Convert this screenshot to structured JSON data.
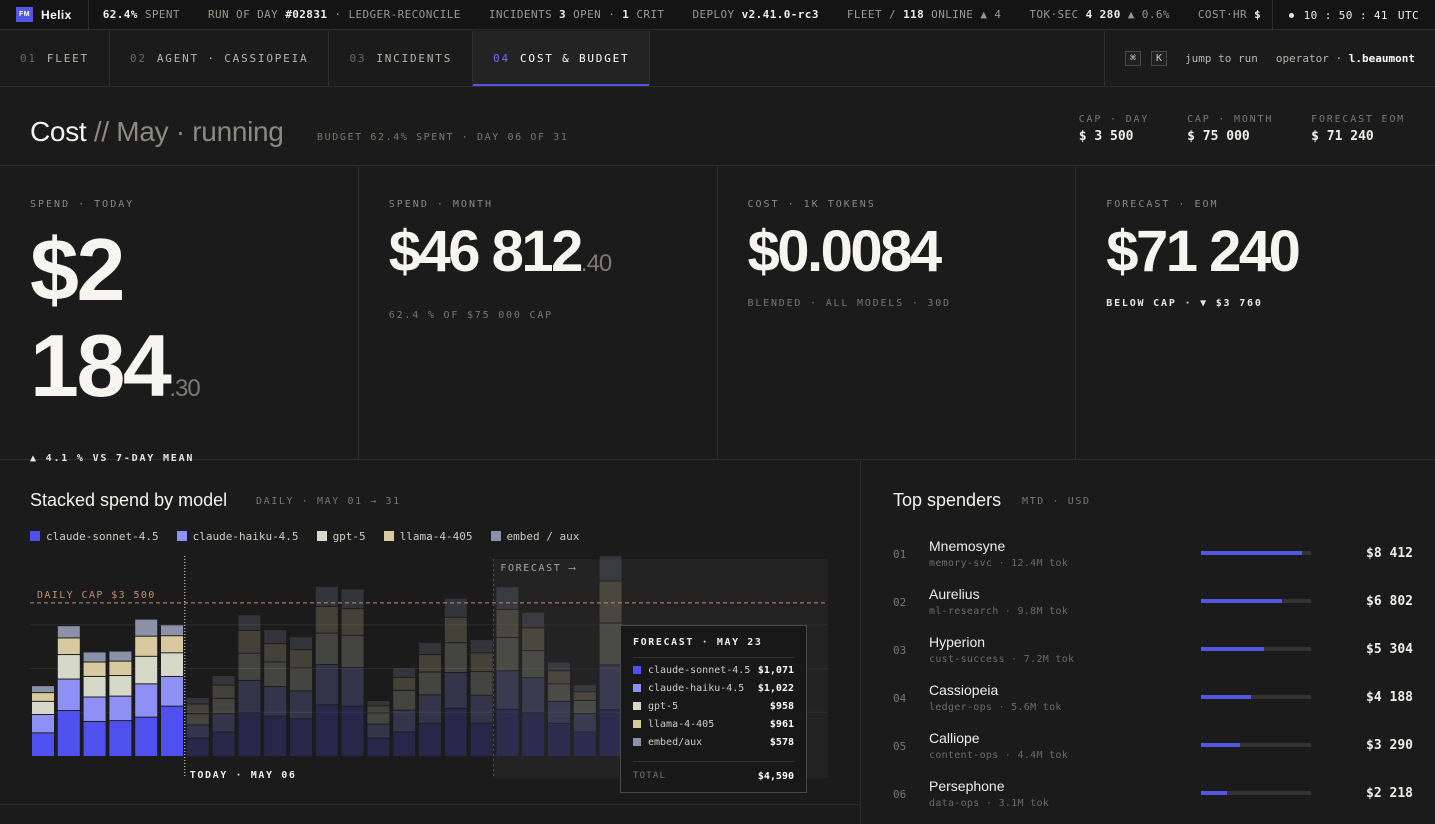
{
  "ticker": {
    "brand_logo": "FM",
    "brand": "Helix",
    "spent_value": "62.4%",
    "spent_label": "SPENT",
    "run_label": "RUN OF DAY",
    "run_id": "#02831",
    "run_name": "· LEDGER-RECONCILE",
    "incidents_label": "INCIDENTS",
    "incidents_open": "3",
    "incidents_open_label": "OPEN ·",
    "incidents_crit": "1",
    "incidents_crit_label": "CRIT",
    "deploy_label": "DEPLOY",
    "deploy_version": "v2.41.0-rc3",
    "fleet_label": "FLEET /",
    "fleet_online": "118",
    "fleet_online_label": "ONLINE ▲ 4",
    "toksec_label": "TOK·SEC",
    "toksec_value": "4 280",
    "toksec_delta": "▲ 0.6%",
    "costhr_label": "COST·HR",
    "costhr_value": "$",
    "clock": "10 : 50 : 41",
    "tz": "UTC"
  },
  "tabs": [
    {
      "num": "01",
      "label": "FLEET"
    },
    {
      "num": "02",
      "label": "AGENT · CASSIOPEIA"
    },
    {
      "num": "03",
      "label": "INCIDENTS"
    },
    {
      "num": "04",
      "label": "COST & BUDGET"
    }
  ],
  "nav": {
    "kbd1": "⌘",
    "kbd2": "K",
    "jump": "jump to run",
    "operator_label": "operator ·",
    "operator": "l.beaumont"
  },
  "header": {
    "title": "Cost",
    "title_sep": " // ",
    "title_period": "May · running",
    "sub": "BUDGET 62.4% SPENT · DAY 06 OF 31",
    "caps": [
      {
        "label": "CAP · DAY",
        "value": "$ 3 500"
      },
      {
        "label": "CAP · MONTH",
        "value": "$ 75 000"
      },
      {
        "label": "FORECAST EOM",
        "value": "$ 71 240"
      }
    ]
  },
  "kpis": [
    {
      "label": "SPEND · TODAY",
      "value": "$2 184",
      "cents": ".30",
      "note": "▲ 4.1 % VS 7-DAY MEAN"
    },
    {
      "label": "SPEND · MONTH",
      "value": "$46 812",
      "cents": ".40",
      "note": "62.4 % OF $75 000 CAP"
    },
    {
      "label": "COST · 1K TOKENS",
      "value": "$0.0084",
      "cents": "",
      "note": "BLENDED · ALL MODELS · 30D"
    },
    {
      "label": "FORECAST · EOM",
      "value": "$71 240",
      "cents": "",
      "note": "BELOW CAP · ▼ $3 760"
    }
  ],
  "chart": {
    "title": "Stacked spend by model",
    "sub": "DAILY · MAY 01 → 31",
    "cap_label": "DAILY CAP $3 500",
    "forecast_label": "FORECAST ⟶",
    "today_label": "TODAY · MAY 06",
    "colors": [
      "#4f51ef",
      "#8e90f5",
      "#d6d9c8",
      "#d8c99e",
      "#8b91a8"
    ]
  },
  "chart_data": {
    "type": "bar",
    "stacked": true,
    "series_names": [
      "claude-sonnet-4.5",
      "claude-haiku-4.5",
      "gpt-5",
      "llama-4-405",
      "embed / aux"
    ],
    "cap": 3500,
    "ylim": [
      0,
      4000
    ],
    "today_index": 6,
    "forecast_from_index": 18,
    "days": [
      [
        540,
        420,
        300,
        200,
        160
      ],
      [
        1050,
        720,
        560,
        380,
        280
      ],
      [
        800,
        560,
        470,
        330,
        230
      ],
      [
        820,
        560,
        470,
        330,
        230
      ],
      [
        900,
        760,
        630,
        460,
        390
      ],
      [
        1150,
        680,
        540,
        390,
        250
      ],
      [
        420,
        300,
        260,
        220,
        150
      ],
      [
        560,
        420,
        350,
        300,
        220
      ],
      [
        1000,
        740,
        620,
        520,
        360
      ],
      [
        920,
        680,
        560,
        420,
        320
      ],
      [
        860,
        640,
        520,
        420,
        300
      ],
      [
        1180,
        920,
        720,
        610,
        460
      ],
      [
        1150,
        880,
        740,
        610,
        450
      ],
      [
        420,
        320,
        260,
        160,
        120
      ],
      [
        560,
        500,
        450,
        300,
        220
      ],
      [
        760,
        650,
        520,
        400,
        280
      ],
      [
        1100,
        820,
        680,
        580,
        440
      ],
      [
        760,
        640,
        540,
        430,
        300
      ],
      [
        1080,
        880,
        760,
        640,
        520
      ],
      [
        1000,
        800,
        620,
        520,
        360
      ],
      [
        760,
        500,
        400,
        300,
        200
      ],
      [
        560,
        420,
        300,
        200,
        160
      ],
      [
        1071,
        1022,
        958,
        961,
        578
      ]
    ],
    "tooltip": {
      "title": "FORECAST · MAY 23",
      "rows": [
        {
          "name": "claude-sonnet-4.5",
          "value": "$1,071"
        },
        {
          "name": "claude-haiku-4.5",
          "value": "$1,022"
        },
        {
          "name": "gpt-5",
          "value": "$958"
        },
        {
          "name": "llama-4-405",
          "value": "$961"
        },
        {
          "name": "embed/aux",
          "value": "$578"
        }
      ],
      "total_label": "TOTAL",
      "total": "$4,590"
    }
  },
  "spenders": {
    "title": "Top spenders",
    "sub": "MTD · USD",
    "rows": [
      {
        "num": "01",
        "name": "Mnemosyne",
        "meta": "memory-svc · 12.4M tok",
        "amount": "$8 412",
        "share": 0.92
      },
      {
        "num": "02",
        "name": "Aurelius",
        "meta": "ml-research · 9.8M tok",
        "amount": "$6 802",
        "share": 0.74
      },
      {
        "num": "03",
        "name": "Hyperion",
        "meta": "cust-success · 7.2M tok",
        "amount": "$5 304",
        "share": 0.57
      },
      {
        "num": "04",
        "name": "Cassiopeia",
        "meta": "ledger-ops · 5.6M tok",
        "amount": "$4 188",
        "share": 0.45
      },
      {
        "num": "05",
        "name": "Calliope",
        "meta": "content-ops · 4.4M tok",
        "amount": "$3 290",
        "share": 0.35
      },
      {
        "num": "06",
        "name": "Persephone",
        "meta": "data-ops · 3.1M tok",
        "amount": "$2 218",
        "share": 0.24
      }
    ]
  }
}
